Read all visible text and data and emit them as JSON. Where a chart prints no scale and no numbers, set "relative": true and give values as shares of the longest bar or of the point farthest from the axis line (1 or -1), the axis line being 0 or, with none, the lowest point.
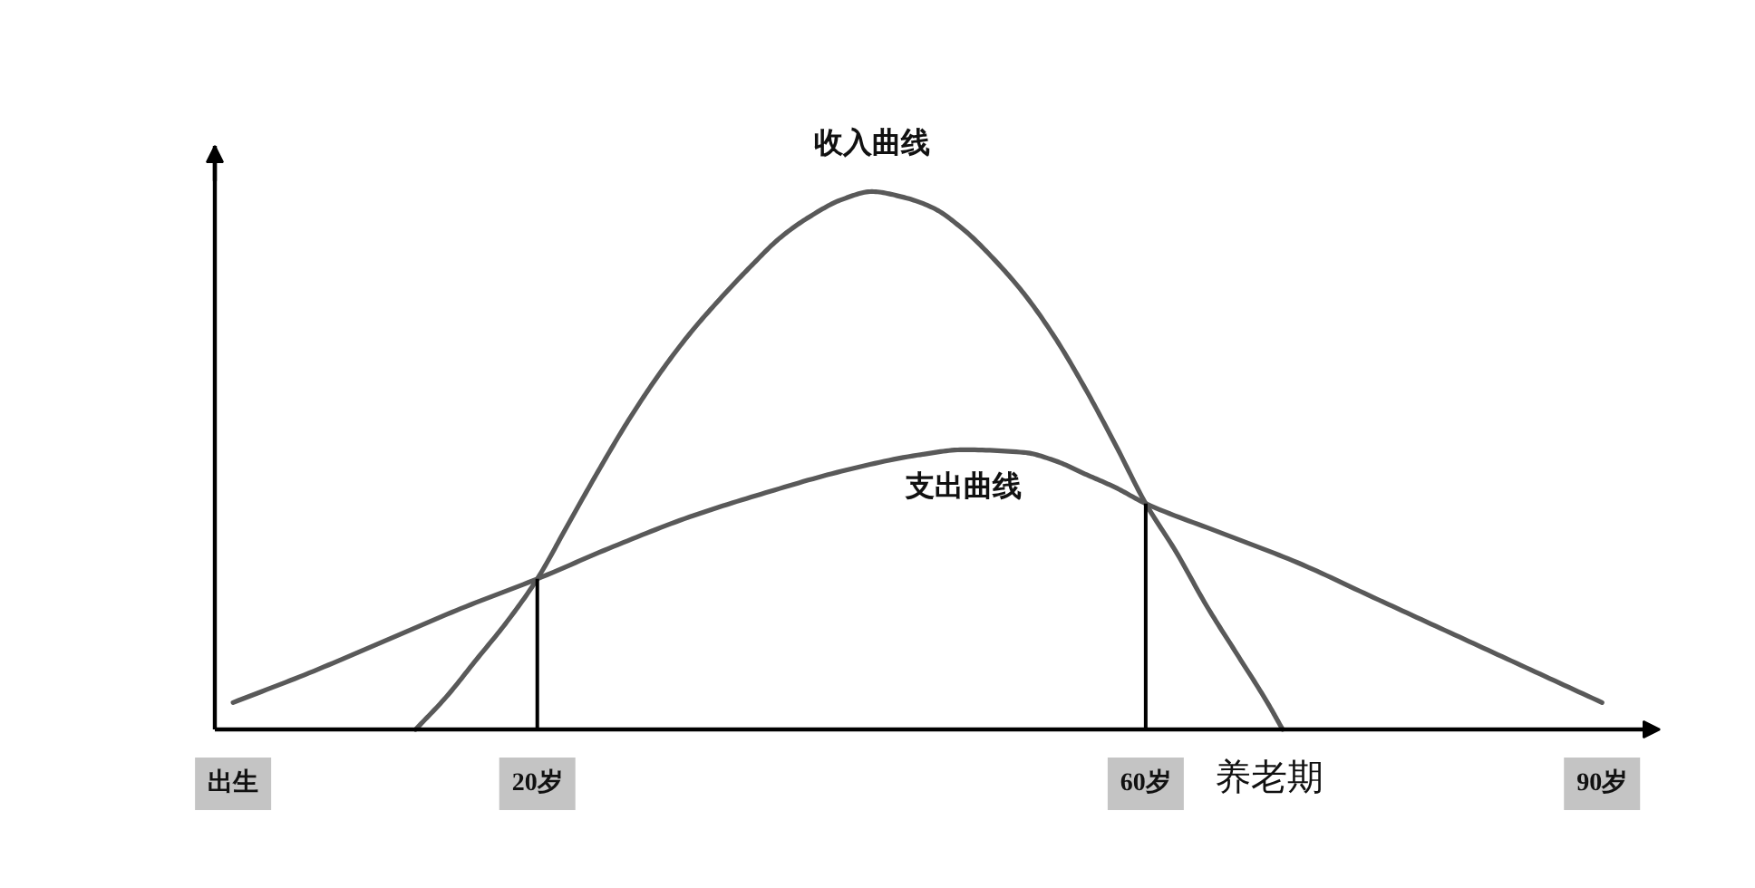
{
  "chart_data": {
    "type": "line",
    "relative": true,
    "xlim": [
      -1.2,
      93.8
    ],
    "xticks": [
      {
        "value": 0,
        "label": "出生"
      },
      {
        "value": 20,
        "label": "20岁"
      },
      {
        "value": 60,
        "label": "60岁"
      },
      {
        "value": 90,
        "label": "90岁"
      }
    ],
    "series": [
      {
        "name": "收入曲线",
        "color": "#595959",
        "x": [
          12,
          14,
          16,
          18,
          20,
          22,
          24,
          26,
          28,
          30,
          32,
          34,
          36,
          38,
          40,
          42,
          44,
          46,
          48,
          50,
          52,
          54,
          56,
          58,
          60,
          62,
          64,
          66,
          68,
          69
        ],
        "values": [
          0,
          0.06,
          0.13,
          0.2,
          0.28,
          0.38,
          0.48,
          0.575,
          0.66,
          0.735,
          0.8,
          0.86,
          0.915,
          0.955,
          0.985,
          1,
          0.99,
          0.97,
          0.93,
          0.875,
          0.81,
          0.73,
          0.635,
          0.53,
          0.42,
          0.33,
          0.23,
          0.14,
          0.05,
          0
        ]
      },
      {
        "name": "支出曲线",
        "color": "#595959",
        "x": [
          0,
          5,
          10,
          15,
          20,
          25,
          30,
          35,
          40,
          45,
          48,
          52,
          54,
          56,
          58,
          60,
          65,
          70,
          75,
          80,
          85,
          90
        ],
        "values": [
          0.05,
          0.105,
          0.165,
          0.225,
          0.28,
          0.34,
          0.395,
          0.44,
          0.48,
          0.51,
          0.52,
          0.515,
          0.5,
          0.475,
          0.45,
          0.42,
          0.365,
          0.31,
          0.245,
          0.18,
          0.115,
          0.05
        ]
      }
    ],
    "ref_lines": [
      {
        "axis": "x",
        "value": 20,
        "color": "#000000"
      },
      {
        "axis": "x",
        "value": 60,
        "color": "#000000"
      }
    ],
    "annotations": [
      "养老期"
    ]
  }
}
